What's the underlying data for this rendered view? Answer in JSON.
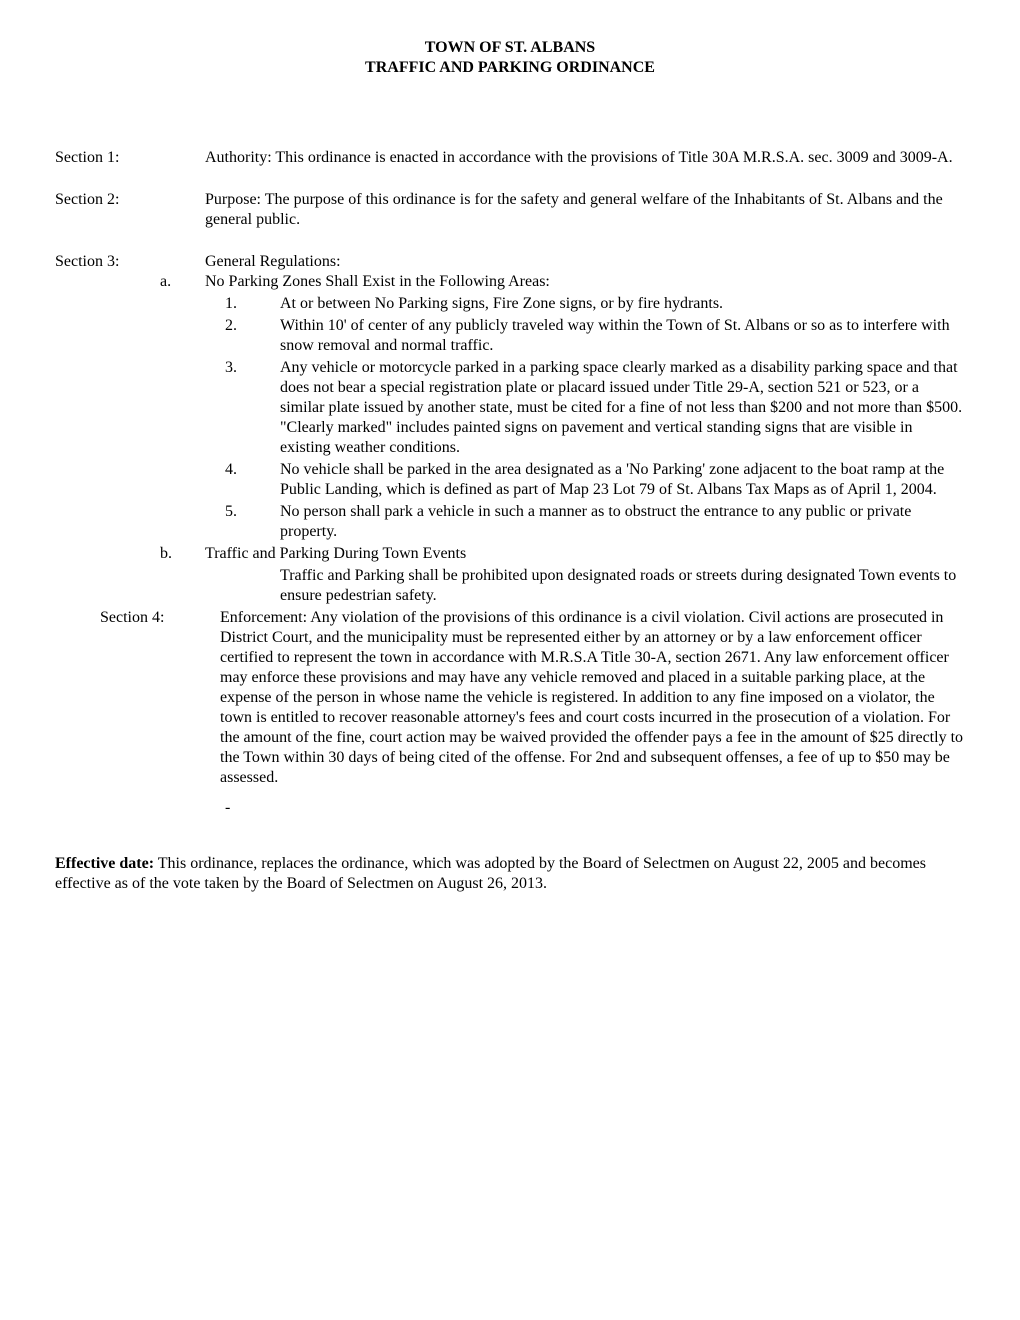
{
  "title_line1": "TOWN OF ST. ALBANS",
  "title_line2": "TRAFFIC AND PARKING ORDINANCE",
  "sections": {
    "s1": {
      "label": "Section 1:",
      "text": "Authority:  This ordinance is enacted in accordance with the provisions of Title 30A M.R.S.A. sec. 3009 and 3009-A."
    },
    "s2": {
      "label": "Section 2:",
      "text": "Purpose:   The purpose of this ordinance is for the safety and general welfare of the Inhabitants of St. Albans and the general public."
    },
    "s3": {
      "label": "Section 3:",
      "heading": "General Regulations:",
      "a_marker": "a.",
      "a_text": "No Parking Zones Shall Exist in the Following Areas:",
      "items": [
        {
          "marker": "1.",
          "text": "At or between No Parking signs, Fire Zone signs, or by fire hydrants."
        },
        {
          "marker": "2.",
          "text": "Within 10' of center of any publicly traveled way within the Town of St. Albans or so as to interfere with snow removal and normal traffic."
        },
        {
          "marker": "3.",
          "text": "Any vehicle or motorcycle parked in a parking space clearly marked as a disability parking space and that does not bear a special registration plate or placard issued under Title 29-A, section 521 or 523, or a similar plate issued by another state, must be cited for a  fine of not less than $200 and not more than $500.  \"Clearly marked\" includes painted signs on pavement and vertical standing signs that are visible in existing weather conditions."
        },
        {
          "marker": "4.",
          "text": "No vehicle shall be parked in the area designated as a 'No Parking' zone adjacent to the boat ramp at the Public Landing, which is defined as part of  Map 23 Lot 79 of St. Albans Tax Maps as of April 1, 2004."
        },
        {
          "marker": "5.",
          "text": "No person shall park a vehicle in such a manner as to obstruct the entrance to any public or private property."
        }
      ],
      "b_marker": "b.",
      "b_text": "Traffic and Parking During Town Events",
      "b_sub": "Traffic and Parking shall be prohibited upon designated roads or streets during designated Town events to ensure pedestrian safety."
    },
    "s4": {
      "label": "Section 4:",
      "text": "Enforcement:  Any violation of the provisions of this ordinance is a civil violation. Civil actions are prosecuted in District Court, and the municipality must be represented either by an attorney or by a law enforcement officer certified to represent the town in accordance with M.R.S.A Title 30-A, section 2671. Any law enforcement officer may enforce these provisions and may have any vehicle removed and placed in a suitable parking place, at the expense of the person in whose name the vehicle is registered.   In addition to any fine imposed on a violator, the town is entitled to recover reasonable attorney's fees and court costs incurred in the prosecution of a violation. For the amount of the fine, court action may be waived provided the offender pays a fee in the amount of $25 directly to the Town within 30 days of being cited of the offense.  For 2nd and subsequent offenses, a fee of up to $50 may be assessed."
    },
    "dash": "-",
    "effective_label": "Effective date:",
    "effective_text": "  This ordinance, replaces the ordinance, which was adopted by the Board of Selectmen on August 22, 2005 and becomes effective as of the vote taken by the Board of Selectmen on August 26, 2013."
  }
}
